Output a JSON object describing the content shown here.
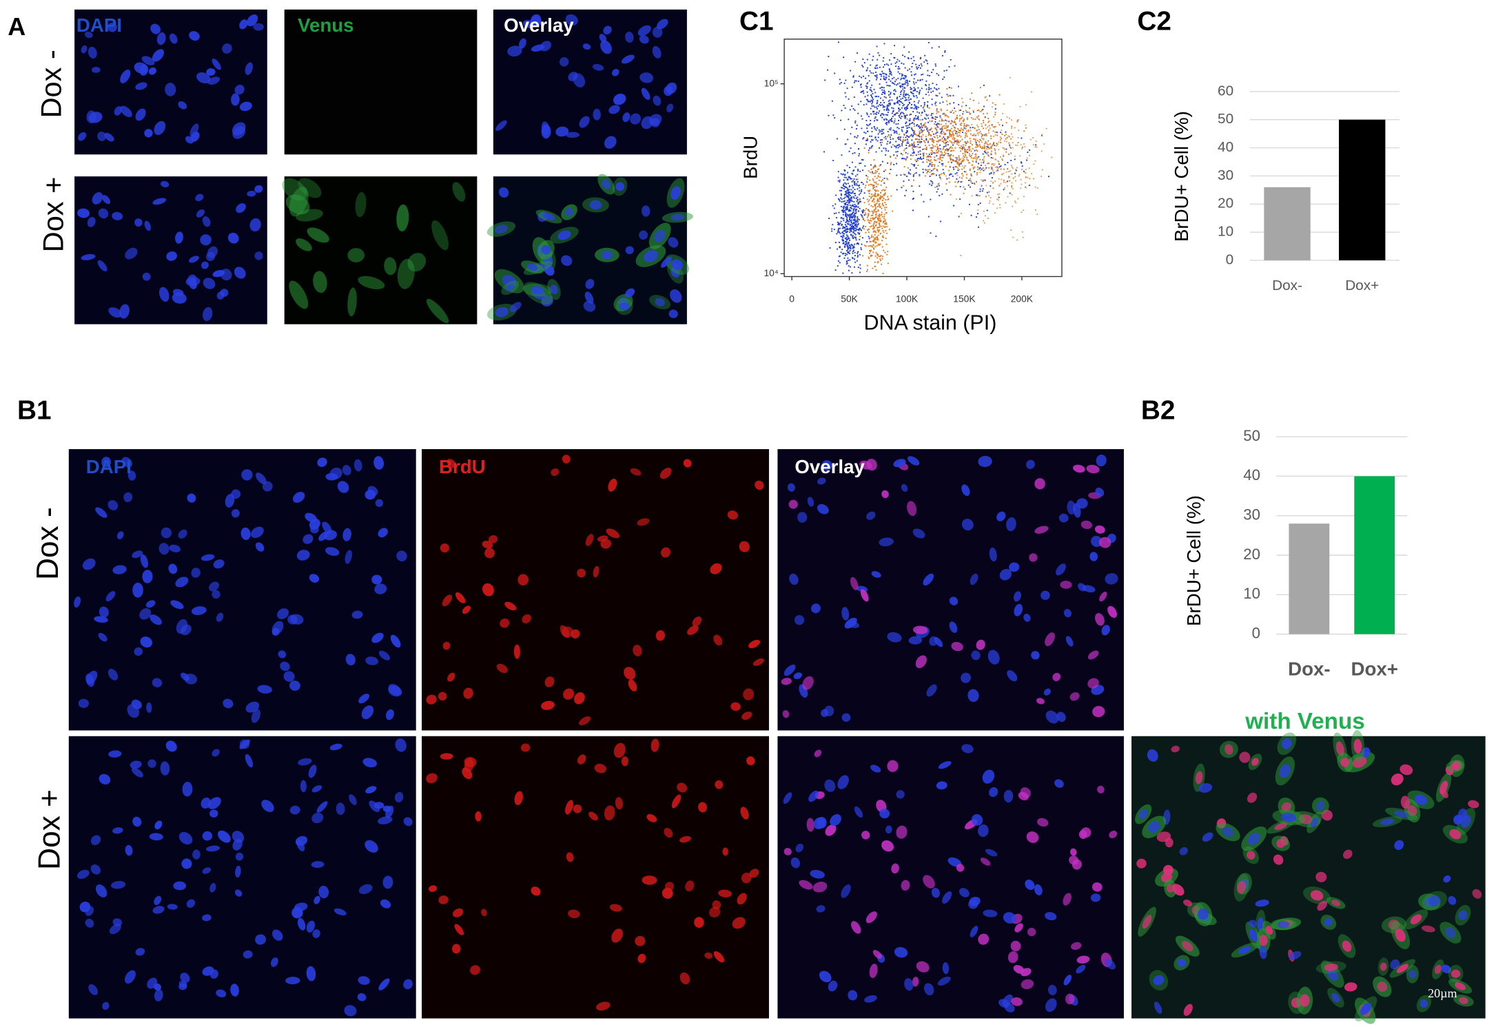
{
  "panel_a": {
    "label": "A",
    "columns": [
      "DAPI",
      "Venus",
      "Overlay"
    ],
    "rows": [
      "Dox -",
      "Dox +"
    ]
  },
  "panel_b1": {
    "label": "B1",
    "columns": [
      "DAPI",
      "BrdU",
      "Overlay"
    ],
    "rows": [
      "Dox -",
      "Dox +"
    ],
    "extra_title": "with Venus",
    "scale_bar": "20µm"
  },
  "chart_data": [
    {
      "type": "scatter",
      "panel_label": "C1",
      "x_label": "DNA stain (PI)",
      "y_label": "BrdU",
      "xlim": [
        -6600,
        234800
      ],
      "xticks": [
        0,
        {
          "value": 50000,
          "label": "50K"
        },
        {
          "value": 100000,
          "label": "100K"
        },
        {
          "value": 150000,
          "label": "150K"
        },
        {
          "value": 200000,
          "label": "200K"
        }
      ],
      "ylim": [
        9660,
        172000
      ],
      "y_log": true,
      "yticks": [
        {
          "value": 10000,
          "label": "10⁴"
        },
        {
          "value": 100000,
          "label": "10⁵"
        }
      ]
    },
    {
      "type": "bar",
      "panel_label": "C2",
      "y_label": "BrDU+  Cell (%)",
      "categories": [
        "Dox-",
        "Dox+"
      ],
      "values": [
        26,
        50
      ],
      "colors": [
        "#a6a6a6",
        "#000000"
      ],
      "ylim": [
        0,
        60
      ],
      "yticks": [
        0,
        10,
        20,
        30,
        40,
        50,
        60
      ],
      "grid": true
    },
    {
      "type": "bar",
      "panel_label": "B2",
      "y_label": "BrDU+ Cell (%)",
      "categories": [
        "Dox-",
        "Dox+"
      ],
      "values": [
        28,
        40
      ],
      "colors": [
        "#a6a6a6",
        "#00b050"
      ],
      "ylim": [
        0,
        50
      ],
      "yticks": [
        0,
        10,
        20,
        30,
        40,
        50
      ],
      "grid": true
    }
  ]
}
